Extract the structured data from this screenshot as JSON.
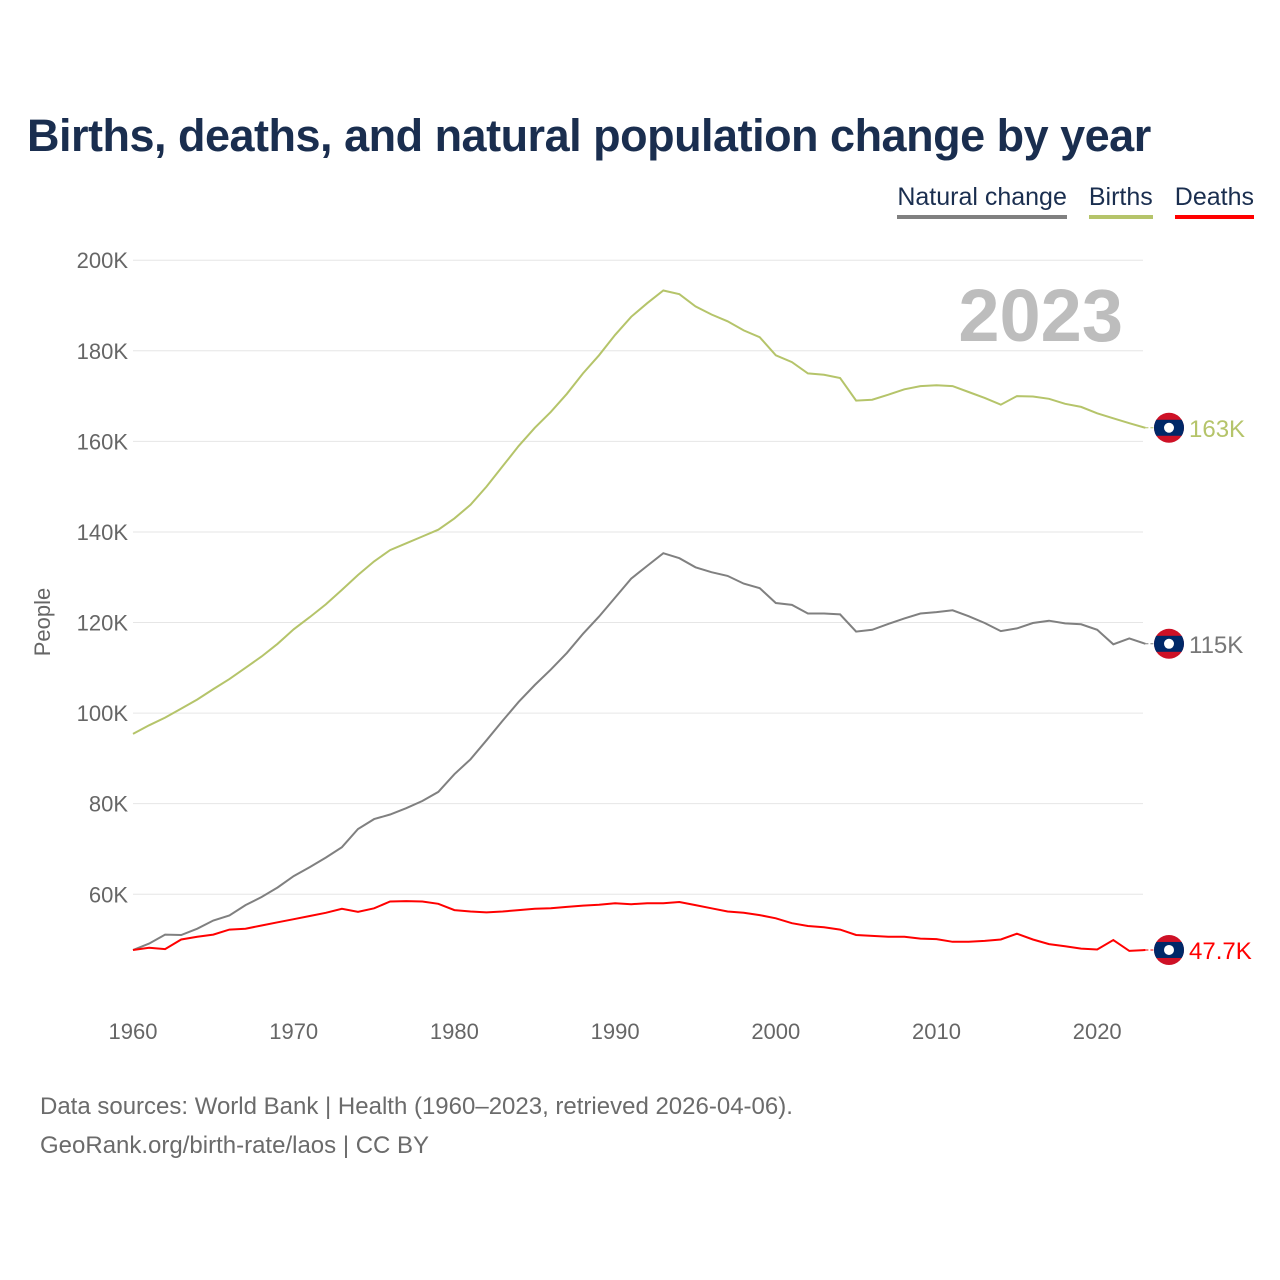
{
  "chart_data": {
    "type": "line",
    "title": "Births, deaths, and natural population change by year",
    "xlabel": "",
    "ylabel": "People",
    "xlim": [
      1960,
      2023
    ],
    "ylim": [
      40000,
      200000
    ],
    "grid": true,
    "legend_placement": "top-right",
    "year_label": "2023",
    "x_ticks": [
      "1960",
      "1970",
      "1980",
      "1990",
      "2000",
      "2010",
      "2020"
    ],
    "y_ticks": [
      "60K",
      "80K",
      "100K",
      "120K",
      "140K",
      "160K",
      "180K",
      "200K"
    ],
    "y_tick_values": [
      60000,
      80000,
      100000,
      120000,
      140000,
      160000,
      180000,
      200000
    ],
    "x_tick_values": [
      1960,
      1970,
      1980,
      1990,
      2000,
      2010,
      2020
    ],
    "x_start": 1960,
    "series": [
      {
        "name": "Natural change",
        "color": "#808080",
        "end_label": "115K",
        "values": [
          47.7,
          49.1,
          51.1,
          51,
          52.4,
          54.2,
          55.3,
          57.6,
          59.4,
          61.5,
          64,
          66,
          68.1,
          70.4,
          74.4,
          76.6,
          77.6,
          79,
          80.6,
          82.6,
          86.5,
          89.8,
          94,
          98.3,
          102.5,
          106.2,
          109.6,
          113.3,
          117.5,
          121.3,
          125.5,
          129.7,
          132.5,
          135.3,
          134.2,
          132.2,
          131.1,
          130.3,
          128.6,
          127.6,
          124.3,
          123.9,
          122,
          122,
          121.8,
          118,
          118.4,
          119.7,
          120.9,
          122,
          122.3,
          122.7,
          121.4,
          119.9,
          118.1,
          118.7,
          119.9,
          120.4,
          119.8,
          119.6,
          118.4,
          115.2,
          116.5,
          115.3
        ]
      },
      {
        "name": "Births",
        "color": "#b5c46a",
        "end_label": "163K",
        "values": [
          95.4,
          97.3,
          99,
          101,
          103,
          105.3,
          107.5,
          110,
          112.5,
          115.3,
          118.5,
          121.2,
          124,
          127.2,
          130.5,
          133.5,
          136,
          137.5,
          139,
          140.5,
          143,
          146,
          150,
          154.5,
          159,
          163,
          166.5,
          170.5,
          175,
          179,
          183.5,
          187.5,
          190.5,
          193.3,
          192.5,
          189.8,
          188,
          186.5,
          184.5,
          183,
          179,
          177.5,
          175,
          174.7,
          174,
          169,
          169.2,
          170.3,
          171.5,
          172.2,
          172.4,
          172.2,
          170.9,
          169.6,
          168.1,
          170,
          169.9,
          169.4,
          168.3,
          167.6,
          166.2,
          165.1,
          164,
          163
        ]
      },
      {
        "name": "Deaths",
        "color": "#ff0000",
        "end_label": "47.7K",
        "values": [
          47.7,
          48.2,
          47.9,
          50,
          50.6,
          51.1,
          52.2,
          52.4,
          53.1,
          53.8,
          54.5,
          55.2,
          55.9,
          56.8,
          56.1,
          56.9,
          58.4,
          58.5,
          58.4,
          57.9,
          56.5,
          56.2,
          56,
          56.2,
          56.5,
          56.8,
          56.9,
          57.2,
          57.5,
          57.7,
          58,
          57.8,
          58,
          58,
          58.3,
          57.6,
          56.9,
          56.2,
          55.9,
          55.4,
          54.7,
          53.6,
          53,
          52.7,
          52.2,
          51,
          50.8,
          50.6,
          50.6,
          50.2,
          50.1,
          49.5,
          49.5,
          49.7,
          50,
          51.3,
          50,
          49,
          48.5,
          48,
          47.8,
          49.9,
          47.5,
          47.7
        ]
      }
    ],
    "value_unit": "thousands of people"
  },
  "footer": {
    "line1": "Data sources: World Bank | Health (1960–2023, retrieved 2026-04-06).",
    "line2": "GeoRank.org/birth-rate/laos | CC BY"
  }
}
